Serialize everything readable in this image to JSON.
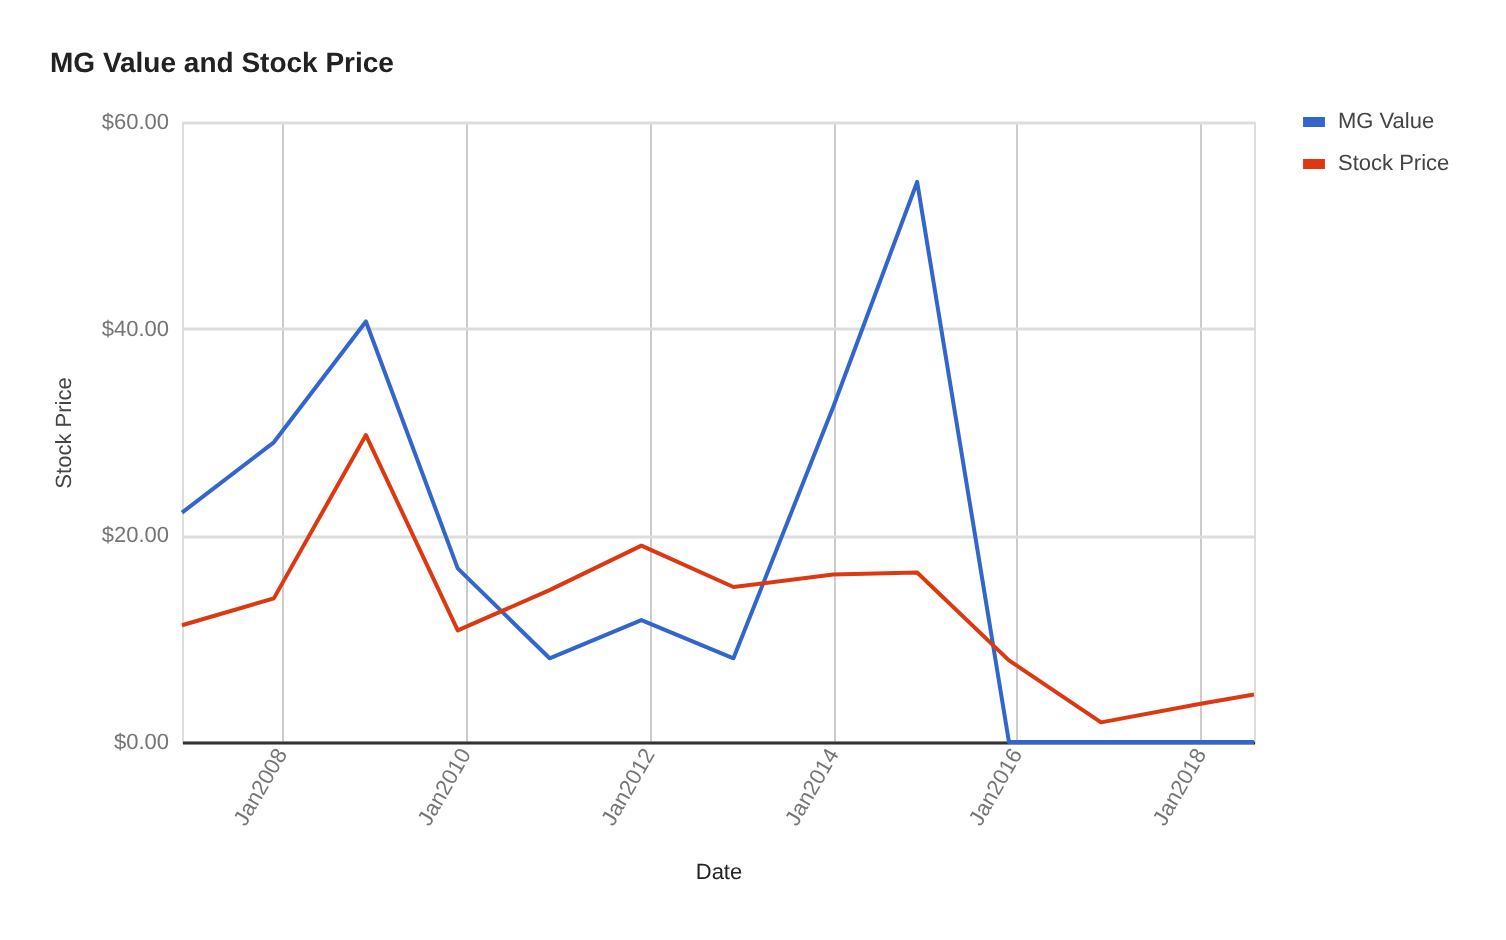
{
  "chart_data": {
    "type": "line",
    "title": "MG Value and Stock Price",
    "xlabel": "Date",
    "ylabel": "Stock Price",
    "x": [
      "2006-12",
      "2007-12",
      "2008-12",
      "2009-12",
      "2010-12",
      "2011-12",
      "2012-12",
      "2014-01",
      "2014-12",
      "2015-12",
      "2016-12",
      "2018-01",
      "2018-08"
    ],
    "series": [
      {
        "name": "MG Value",
        "color": "#3366cc",
        "values": [
          22.2,
          29.0,
          40.7,
          16.8,
          8.1,
          11.8,
          8.1,
          32.4,
          54.2,
          0,
          0,
          0,
          0
        ]
      },
      {
        "name": "Stock Price",
        "color": "#dc3912",
        "values": [
          11.3,
          13.9,
          29.7,
          10.8,
          14.7,
          19.0,
          15.0,
          16.2,
          16.4,
          7.9,
          1.9,
          3.7,
          4.6
        ]
      }
    ],
    "xlim": [
      "2006-12",
      "2018-08"
    ],
    "xticks": [
      {
        "value": "2008-01",
        "label": "Jan2008"
      },
      {
        "value": "2010-01",
        "label": "Jan2010"
      },
      {
        "value": "2012-01",
        "label": "Jan2012"
      },
      {
        "value": "2014-01",
        "label": "Jan2014"
      },
      {
        "value": "2016-01",
        "label": "Jan2016"
      },
      {
        "value": "2018-01",
        "label": "Jan2018"
      }
    ],
    "ylim": [
      0,
      60
    ],
    "yticks": [
      {
        "value": 0,
        "label": "$0.00"
      },
      {
        "value": 20,
        "label": "$20.00"
      },
      {
        "value": 40,
        "label": "$40.00"
      },
      {
        "value": 60,
        "label": "$60.00"
      }
    ],
    "grid": true,
    "legend": "right",
    "line_style": "solid"
  }
}
